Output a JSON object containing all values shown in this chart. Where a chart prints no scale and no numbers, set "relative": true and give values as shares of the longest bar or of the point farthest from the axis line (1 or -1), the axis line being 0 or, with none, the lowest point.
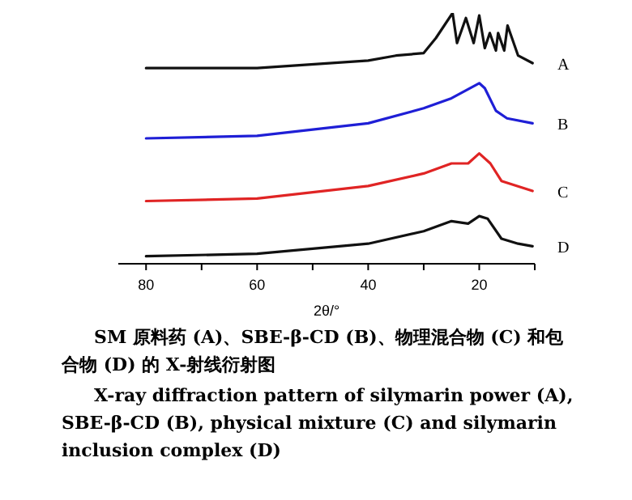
{
  "chart_data": {
    "type": "line",
    "relative": true,
    "xlabel": "2θ/°",
    "xlim": [
      85,
      10
    ],
    "xticks": [
      80,
      {
        "value": 70,
        "label": null
      },
      60,
      {
        "value": 50,
        "label": null
      },
      40,
      {
        "value": 30,
        "label": null
      },
      20,
      {
        "value": 10,
        "label": null
      }
    ],
    "tick_labels": "x",
    "legend": false,
    "grid": false,
    "marker": "none",
    "line_style": "solid",
    "series": [
      {
        "name": "A",
        "color": "#111111",
        "x": [
          80,
          60,
          40,
          35,
          30,
          27.8,
          24.8,
          24,
          22.4,
          21,
          20,
          19,
          18.1,
          17,
          16.6,
          15.5,
          14.9,
          13,
          10.4
        ],
        "values": [
          0.78,
          0.78,
          0.81,
          0.83,
          0.84,
          0.9,
          1.0,
          0.88,
          0.98,
          0.88,
          0.99,
          0.86,
          0.92,
          0.85,
          0.92,
          0.85,
          0.95,
          0.83,
          0.8
        ]
      },
      {
        "name": "B",
        "color": "#1f1fd6",
        "x": [
          80,
          60,
          40,
          30,
          25,
          20,
          19,
          17,
          15,
          10.4
        ],
        "values": [
          0.5,
          0.51,
          0.56,
          0.62,
          0.66,
          0.72,
          0.7,
          0.61,
          0.58,
          0.56
        ]
      },
      {
        "name": "C",
        "color": "#e02424",
        "x": [
          80,
          60,
          40,
          30,
          25,
          22,
          20,
          18,
          16,
          10.4
        ],
        "values": [
          0.25,
          0.26,
          0.31,
          0.36,
          0.4,
          0.4,
          0.44,
          0.4,
          0.33,
          0.29
        ]
      },
      {
        "name": "D",
        "color": "#111111",
        "x": [
          80,
          60,
          40,
          30,
          25,
          22,
          20,
          18.5,
          16,
          13,
          10.4
        ],
        "values": [
          0.03,
          0.04,
          0.08,
          0.13,
          0.17,
          0.16,
          0.19,
          0.18,
          0.1,
          0.08,
          0.07
        ]
      }
    ],
    "annotations": [
      "SM 原料药 (A)、SBE-β-CD (B)、物理混合物 (C) 和包合物 (D) 的 X-射线衍射图",
      "X-ray diffraction pattern of silymarin power (A), SBE-β-CD (B), physical mixture (C) and silymarin inclusion complex (D)"
    ]
  }
}
